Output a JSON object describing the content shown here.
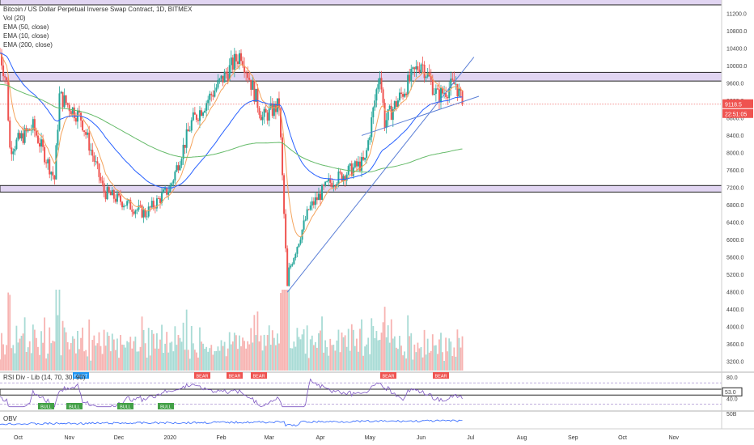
{
  "header": {
    "symbol_title": "Bitcoin / US Dollar Perpetual Inverse Swap Contract, 1D, BITMEX",
    "indicators": [
      "Vol (20)",
      "EMA (50, close)",
      "EMA (10, close)",
      "EMA (200, close)"
    ]
  },
  "price_axis": {
    "ticks": [
      "11200.0",
      "10800.0",
      "10400.0",
      "10000.0",
      "9600.0",
      "9200.0",
      "8800.0",
      "8400.0",
      "8000.0",
      "7600.0",
      "7200.0",
      "6800.0",
      "6400.0",
      "6000.0",
      "5600.0",
      "5200.0",
      "4800.0",
      "4400.0",
      "4000.0",
      "3600.0",
      "3200.0"
    ],
    "last_price": "9118.5",
    "countdown": "22:51:05"
  },
  "time_axis": {
    "labels": [
      "Oct",
      "Nov",
      "Dec",
      "2020",
      "Feb",
      "Mar",
      "Apr",
      "May",
      "Jun",
      "Jul",
      "Aug",
      "Sep",
      "Oct",
      "Nov"
    ]
  },
  "rsi_pane": {
    "label": "RSI Div - Lib (14, 70, 30, 90)",
    "ticks": [
      "80.0",
      "40.0"
    ],
    "value": "53.0",
    "top_signals": [
      "PIVOT",
      "BEAR",
      "BEAR",
      "BEAR",
      "BEAR",
      "BEAR"
    ],
    "bottom_signals": [
      "BULL",
      "BULL",
      "BULL",
      "BULL"
    ]
  },
  "obv_pane": {
    "label": "OBV",
    "tick": "50B"
  },
  "colors": {
    "bull": "#26a69a",
    "bear": "#ef5350",
    "ema10": "#f4a35c",
    "ema50": "#2962ff",
    "ema200": "#66bb6a",
    "zone_fill": "#e1d5f2",
    "rsi_line": "#7e57c2",
    "obv_line": "#2962ff"
  },
  "chart_data": [
    {
      "type": "candlestick",
      "title": "Bitcoin / US Dollar Perpetual Inverse Swap Contract, 1D, BITMEX",
      "ylim": [
        3000,
        11400
      ],
      "x_range": [
        "2019-09-20",
        "2020-11-30"
      ],
      "last_close": 9118.5,
      "price_path": [
        [
          "2019-09-20",
          10300
        ],
        [
          "2019-09-24",
          9600
        ],
        [
          "2019-09-26",
          8100
        ],
        [
          "2019-10-10",
          8600
        ],
        [
          "2019-10-23",
          7400
        ],
        [
          "2019-10-26",
          9300
        ],
        [
          "2019-11-08",
          8800
        ],
        [
          "2019-11-22",
          7100
        ],
        [
          "2019-12-17",
          6600
        ],
        [
          "2020-01-01",
          7200
        ],
        [
          "2020-01-14",
          8700
        ],
        [
          "2020-02-13",
          10300
        ],
        [
          "2020-02-26",
          8800
        ],
        [
          "2020-03-07",
          9100
        ],
        [
          "2020-03-12",
          4900
        ],
        [
          "2020-03-13",
          5300
        ],
        [
          "2020-03-25",
          6700
        ],
        [
          "2020-04-06",
          7300
        ],
        [
          "2020-04-28",
          7800
        ],
        [
          "2020-05-07",
          9900
        ],
        [
          "2020-05-10",
          8700
        ],
        [
          "2020-06-01",
          10100
        ],
        [
          "2020-06-11",
          9300
        ],
        [
          "2020-06-22",
          9600
        ],
        [
          "2020-06-26",
          9118.5
        ]
      ],
      "horizontal_zones": [
        [
          9650,
          9850
        ],
        [
          7100,
          7250
        ],
        [
          11400,
          11600
        ]
      ],
      "trendlines": [
        [
          [
            "2020-03-12",
            4800
          ],
          [
            "2020-07-03",
            10200
          ]
        ],
        [
          [
            "2020-04-26",
            8400
          ],
          [
            "2020-07-06",
            9300
          ]
        ]
      ],
      "series_overlays": [
        {
          "name": "EMA (10, close)"
        },
        {
          "name": "EMA (50, close)"
        },
        {
          "name": "EMA (200, close)"
        }
      ]
    },
    {
      "type": "line",
      "title": "RSI Div - Lib (14, 70, 30, 90)",
      "ylim": [
        20,
        90
      ],
      "guides": [
        70,
        30
      ],
      "last_value": 53.0
    },
    {
      "type": "line",
      "title": "OBV"
    }
  ]
}
